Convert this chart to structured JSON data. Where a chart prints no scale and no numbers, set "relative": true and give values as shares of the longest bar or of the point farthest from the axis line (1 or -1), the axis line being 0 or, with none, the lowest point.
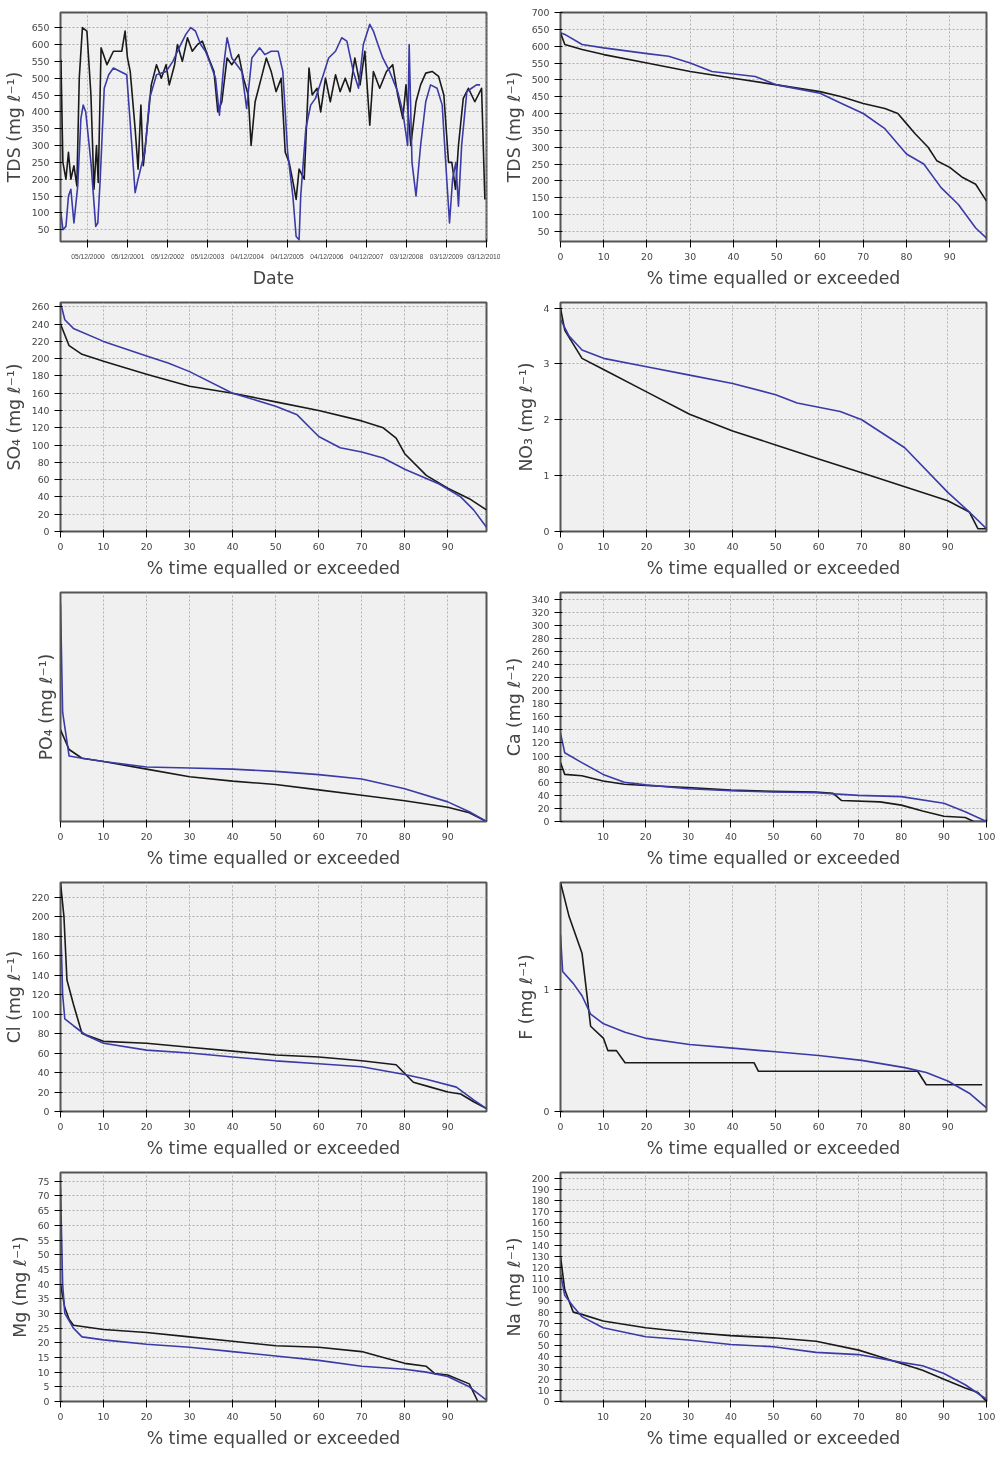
{
  "chart_data": [
    {
      "type": "line",
      "xlabel": "Date",
      "ylabel": "TDS (mg ℓ⁻¹)",
      "grid": true,
      "xlim": [
        "2000-03-28",
        "2010-12-06"
      ],
      "ylim": [
        15,
        695
      ],
      "xticks": [
        {
          "value": "2000-12-05",
          "label": "05/12/2000"
        },
        {
          "value": "2001-12-05",
          "label": "05/12/2001"
        },
        {
          "value": "2002-12-05",
          "label": "05/12/2002"
        },
        {
          "value": "2003-12-05",
          "label": "05/12/2003"
        },
        {
          "value": "2004-12-04",
          "label": "04/12/2004"
        },
        {
          "value": "2005-12-04",
          "label": "04/12/2005"
        },
        {
          "value": "2006-12-04",
          "label": "04/12/2006"
        },
        {
          "value": "2007-12-04",
          "label": "04/12/2007"
        },
        {
          "value": "2008-12-03",
          "label": "03/12/2008"
        },
        {
          "value": "2009-12-03",
          "label": "03/12/2009"
        },
        {
          "value": "2010-12-03",
          "label": "03/12/2010"
        }
      ],
      "yticks": [
        50,
        100,
        150,
        200,
        250,
        300,
        350,
        400,
        450,
        500,
        550,
        600,
        650
      ],
      "series": [
        {
          "color": "#1a1a1a",
          "x": [
            "2000-04-01",
            "2000-04-19",
            "2000-05-17",
            "2000-06-09",
            "2000-07-01",
            "2000-07-29",
            "2000-08-25",
            "2000-09-16",
            "2000-10-15",
            "2000-11-25",
            "2001-01-01",
            "2001-01-29",
            "2001-02-21",
            "2001-03-09",
            "2001-04-04",
            "2001-05-28",
            "2001-07-26",
            "2001-10-11",
            "2001-11-10",
            "2001-12-02",
            "2001-12-27",
            "2002-02-10",
            "2002-03-09",
            "2002-04-04",
            "2002-04-26",
            "2002-05-25",
            "2002-07-08",
            "2002-08-25",
            "2002-10-08",
            "2002-11-21",
            "2002-12-20",
            "2003-02-07",
            "2003-03-05",
            "2003-04-19",
            "2003-06-05",
            "2003-07-19",
            "2003-09-05",
            "2003-10-19",
            "2003-12-16",
            "2004-02-03",
            "2004-03-09",
            "2004-04-15",
            "2004-06-02",
            "2004-07-15",
            "2004-09-16",
            "2004-10-30",
            "2004-12-13",
            "2005-01-08",
            "2005-02-14",
            "2005-04-11",
            "2005-05-28",
            "2005-07-11",
            "2005-08-25",
            "2005-10-11",
            "2005-11-17",
            "2005-12-23",
            "2006-02-03",
            "2006-02-25",
            "2006-03-24",
            "2006-05-10",
            "2006-06-23",
            "2006-07-22",
            "2006-09-05",
            "2006-10-08",
            "2006-11-21",
            "2007-01-04",
            "2007-02-21",
            "2007-04-04",
            "2007-05-21",
            "2007-07-04",
            "2007-08-17",
            "2007-10-04",
            "2007-11-17",
            "2008-01-01",
            "2008-02-03",
            "2008-04-01",
            "2008-06-02",
            "2008-07-29",
            "2008-09-13",
            "2008-10-30",
            "2008-11-28",
            "2009-01-11",
            "2009-02-28",
            "2009-04-11",
            "2009-05-28",
            "2009-07-26",
            "2009-09-23",
            "2009-11-10",
            "2009-12-23",
            "2010-01-22",
            "2010-02-25",
            "2010-03-24",
            "2010-05-07",
            "2010-06-23",
            "2010-08-21",
            "2010-10-22",
            "2010-11-21"
          ],
          "values": [
            555,
            250,
            200,
            280,
            200,
            240,
            180,
            500,
            650,
            640,
            450,
            170,
            300,
            190,
            590,
            540,
            580,
            580,
            640,
            560,
            520,
            350,
            230,
            420,
            240,
            330,
            480,
            540,
            500,
            540,
            480,
            540,
            600,
            550,
            620,
            580,
            600,
            610,
            560,
            520,
            400,
            430,
            560,
            540,
            570,
            500,
            450,
            300,
            430,
            500,
            560,
            520,
            460,
            500,
            280,
            250,
            180,
            140,
            230,
            200,
            530,
            450,
            470,
            400,
            500,
            430,
            510,
            460,
            500,
            460,
            560,
            480,
            580,
            360,
            520,
            470,
            520,
            540,
            450,
            380,
            480,
            300,
            430,
            480,
            515,
            520,
            505,
            450,
            250,
            250,
            170,
            300,
            440,
            470,
            430,
            470,
            140
          ]
        },
        {
          "color": "#3b3ba8",
          "x": [
            "2000-04-01",
            "2000-04-19",
            "2000-05-17",
            "2000-06-09",
            "2000-07-01",
            "2000-07-29",
            "2000-09-02",
            "2000-10-01",
            "2000-10-22",
            "2000-11-14",
            "2001-01-01",
            "2001-02-14",
            "2001-03-05",
            "2001-03-27",
            "2001-05-03",
            "2001-06-13",
            "2001-07-26",
            "2001-09-27",
            "2001-11-25",
            "2002-01-11",
            "2002-02-10",
            "2002-03-09",
            "2002-04-08",
            "2002-05-10",
            "2002-06-23",
            "2002-08-25",
            "2002-11-21",
            "2003-01-22",
            "2003-03-20",
            "2003-05-21",
            "2003-07-04",
            "2003-08-17",
            "2003-10-04",
            "2003-11-17",
            "2004-01-04",
            "2004-02-17",
            "2004-03-24",
            "2004-05-03",
            "2004-06-02",
            "2004-07-15",
            "2004-10-15",
            "2004-11-28",
            "2005-01-15",
            "2005-03-27",
            "2005-05-14",
            "2005-07-11",
            "2005-09-13",
            "2005-10-26",
            "2005-12-09",
            "2006-01-26",
            "2006-02-25",
            "2006-03-24",
            "2006-04-08",
            "2006-05-25",
            "2006-07-08",
            "2006-08-21",
            "2006-10-22",
            "2006-12-20",
            "2007-02-21",
            "2007-04-19",
            "2007-06-05",
            "2007-08-03",
            "2007-09-20",
            "2007-11-03",
            "2008-01-01",
            "2008-02-03",
            "2008-03-16",
            "2008-04-29",
            "2008-07-01",
            "2008-09-13",
            "2008-10-30",
            "2008-12-13",
            "2008-12-27",
            "2009-01-22",
            "2009-02-28",
            "2009-04-11",
            "2009-05-28",
            "2009-07-11",
            "2009-09-09",
            "2009-10-26",
            "2009-11-25",
            "2010-01-01",
            "2010-01-29",
            "2010-02-28",
            "2010-03-24",
            "2010-04-22",
            "2010-06-09",
            "2010-07-22",
            "2010-09-05",
            "2010-10-08"
          ],
          "values": [
            100,
            50,
            60,
            150,
            170,
            70,
            180,
            380,
            420,
            400,
            250,
            60,
            70,
            200,
            470,
            510,
            530,
            520,
            510,
            300,
            160,
            200,
            240,
            280,
            440,
            510,
            520,
            550,
            590,
            630,
            650,
            640,
            600,
            580,
            540,
            500,
            390,
            540,
            620,
            560,
            520,
            410,
            560,
            590,
            570,
            580,
            580,
            520,
            280,
            150,
            30,
            20,
            150,
            350,
            420,
            440,
            500,
            560,
            580,
            620,
            610,
            520,
            470,
            600,
            660,
            640,
            600,
            560,
            520,
            460,
            400,
            300,
            600,
            250,
            150,
            300,
            430,
            480,
            470,
            420,
            260,
            70,
            200,
            250,
            120,
            300,
            460,
            470,
            480,
            480
          ]
        }
      ]
    },
    {
      "type": "line",
      "xlabel": "% time equalled or exceeded",
      "ylabel": "TDS (mg ℓ⁻¹)",
      "grid": true,
      "xlim": [
        0,
        98.5
      ],
      "ylim": [
        20,
        700
      ],
      "xticks": [
        0,
        10,
        20,
        30,
        40,
        50,
        60,
        70,
        80,
        90
      ],
      "yticks": [
        50,
        100,
        150,
        200,
        250,
        300,
        350,
        400,
        450,
        500,
        550,
        600,
        650,
        700
      ],
      "series": [
        {
          "color": "#1a1a1a",
          "x": [
            0,
            1,
            5,
            10,
            20,
            30,
            40,
            50,
            60,
            65,
            70,
            75,
            78,
            80,
            82,
            85,
            87,
            90,
            93,
            96,
            98.5
          ],
          "values": [
            640,
            605,
            590,
            575,
            550,
            525,
            505,
            485,
            465,
            450,
            430,
            415,
            400,
            370,
            340,
            300,
            260,
            240,
            210,
            190,
            140
          ]
        },
        {
          "color": "#3b3ba8",
          "x": [
            0,
            1,
            5,
            10,
            20,
            25,
            30,
            35,
            45,
            50,
            60,
            65,
            70,
            75,
            80,
            84,
            88,
            92,
            96,
            98.5
          ],
          "values": [
            640,
            635,
            605,
            595,
            578,
            570,
            550,
            525,
            510,
            485,
            460,
            430,
            400,
            355,
            280,
            250,
            180,
            130,
            60,
            30
          ]
        }
      ]
    },
    {
      "type": "line",
      "xlabel": "% time equalled or exceeded",
      "ylabel": "SO₄ (mg ℓ⁻¹)",
      "grid": true,
      "xlim": [
        0,
        99
      ],
      "ylim": [
        0,
        265
      ],
      "xticks": [
        0,
        10,
        20,
        30,
        40,
        50,
        60,
        70,
        80,
        90
      ],
      "yticks": [
        0,
        20,
        40,
        60,
        80,
        100,
        120,
        140,
        160,
        180,
        200,
        220,
        240,
        260
      ],
      "series": [
        {
          "color": "#1a1a1a",
          "x": [
            0,
            2,
            5,
            10,
            20,
            30,
            40,
            50,
            60,
            70,
            75,
            78,
            80,
            85,
            90,
            95,
            99
          ],
          "values": [
            240,
            215,
            205,
            197,
            182,
            168,
            160,
            150,
            140,
            128,
            120,
            108,
            90,
            65,
            50,
            38,
            25
          ]
        },
        {
          "color": "#3b3ba8",
          "x": [
            0,
            1,
            3,
            10,
            20,
            25,
            30,
            40,
            50,
            55,
            60,
            65,
            70,
            75,
            80,
            88,
            93,
            96,
            99
          ],
          "values": [
            265,
            245,
            235,
            220,
            203,
            195,
            185,
            160,
            145,
            135,
            110,
            97,
            92,
            85,
            72,
            55,
            40,
            25,
            5
          ]
        }
      ]
    },
    {
      "type": "line",
      "xlabel": "% time equalled or exceeded",
      "ylabel": "NO₃ (mg ℓ⁻¹)",
      "grid": true,
      "xlim": [
        0,
        99
      ],
      "ylim": [
        0,
        4.1
      ],
      "xticks": [
        0,
        10,
        20,
        30,
        40,
        50,
        60,
        70,
        80,
        90
      ],
      "yticks": [
        0,
        1,
        2,
        3,
        4
      ],
      "series": [
        {
          "color": "#1a1a1a",
          "x": [
            0,
            1,
            5,
            10,
            20,
            30,
            40,
            50,
            60,
            70,
            80,
            90,
            95,
            97,
            99
          ],
          "values": [
            4.0,
            3.6,
            3.1,
            2.9,
            2.5,
            2.1,
            1.8,
            1.55,
            1.3,
            1.05,
            0.8,
            0.55,
            0.35,
            0.05,
            0.05
          ]
        },
        {
          "color": "#3b3ba8",
          "x": [
            0,
            2,
            5,
            10,
            20,
            30,
            40,
            50,
            55,
            65,
            70,
            80,
            90,
            95,
            99
          ],
          "values": [
            3.8,
            3.5,
            3.25,
            3.1,
            2.95,
            2.8,
            2.65,
            2.45,
            2.3,
            2.15,
            2.0,
            1.5,
            0.7,
            0.35,
            0.05
          ]
        }
      ]
    },
    {
      "type": "line",
      "xlabel": "% time equalled or exceeded",
      "ylabel": "PO₄ (mg ℓ⁻¹)",
      "grid": true,
      "relative": true,
      "xlim": [
        0,
        99
      ],
      "xticks": [
        0,
        10,
        20,
        30,
        40,
        50,
        60,
        70,
        80,
        90
      ],
      "series": [
        {
          "color": "#1a1a1a",
          "x": [
            0,
            2,
            5,
            10,
            20,
            30,
            40,
            50,
            60,
            70,
            80,
            90,
            95,
            99
          ],
          "values": [
            0.42,
            0.33,
            0.29,
            0.275,
            0.24,
            0.205,
            0.185,
            0.17,
            0.145,
            0.12,
            0.095,
            0.065,
            0.04,
            0
          ]
        },
        {
          "color": "#3b3ba8",
          "x": [
            0,
            0.5,
            2,
            5,
            10,
            20,
            30,
            40,
            50,
            60,
            70,
            80,
            90,
            95,
            99
          ],
          "values": [
            1.0,
            0.5,
            0.3,
            0.29,
            0.275,
            0.25,
            0.245,
            0.24,
            0.23,
            0.215,
            0.195,
            0.15,
            0.09,
            0.045,
            0
          ]
        }
      ]
    },
    {
      "type": "line",
      "xlabel": "% time equalled or exceeded",
      "ylabel": "Ca (mg ℓ⁻¹)",
      "grid": true,
      "xlim": [
        0,
        100
      ],
      "ylim": [
        0,
        350
      ],
      "xticks": [
        10,
        20,
        30,
        40,
        50,
        60,
        70,
        80,
        90,
        100
      ],
      "yticks": [
        0,
        20,
        40,
        60,
        80,
        100,
        120,
        140,
        160,
        180,
        200,
        220,
        240,
        260,
        280,
        300,
        320,
        340
      ],
      "series": [
        {
          "color": "#1a1a1a",
          "x": [
            0,
            1,
            5,
            10,
            15,
            20,
            30,
            40,
            50,
            60,
            64,
            66,
            75,
            80,
            85,
            90,
            95,
            97,
            100
          ],
          "values": [
            90,
            72,
            70,
            62,
            57,
            55,
            52,
            48,
            46,
            45,
            43,
            32,
            30,
            25,
            16,
            8,
            6,
            0,
            0
          ]
        },
        {
          "color": "#3b3ba8",
          "x": [
            0,
            1,
            5,
            10,
            15,
            20,
            30,
            40,
            50,
            60,
            70,
            80,
            90,
            95,
            100
          ],
          "values": [
            135,
            105,
            90,
            72,
            60,
            56,
            50,
            47,
            45,
            44,
            40,
            38,
            28,
            15,
            0
          ]
        }
      ]
    },
    {
      "type": "line",
      "xlabel": "% time equalled or exceeded",
      "ylabel": "Cl (mg ℓ⁻¹)",
      "grid": true,
      "xlim": [
        0,
        99
      ],
      "ylim": [
        0,
        235
      ],
      "xticks": [
        0,
        10,
        20,
        30,
        40,
        50,
        60,
        70,
        80,
        90
      ],
      "yticks": [
        0,
        20,
        40,
        60,
        80,
        100,
        120,
        140,
        160,
        180,
        200,
        220
      ],
      "series": [
        {
          "color": "#1a1a1a",
          "x": [
            0,
            0.8,
            1.5,
            3,
            5,
            10,
            20,
            30,
            40,
            50,
            60,
            70,
            78,
            82,
            86,
            90,
            93,
            96,
            99
          ],
          "values": [
            235,
            200,
            135,
            110,
            80,
            72,
            70,
            66,
            62,
            58,
            56,
            52,
            48,
            30,
            25,
            20,
            18,
            10,
            3
          ]
        },
        {
          "color": "#3b3ba8",
          "x": [
            0,
            0.5,
            1,
            3,
            6,
            10,
            20,
            30,
            40,
            50,
            60,
            70,
            80,
            85,
            92,
            96,
            99
          ],
          "values": [
            200,
            120,
            95,
            88,
            78,
            70,
            63,
            60,
            56,
            52,
            49,
            46,
            38,
            33,
            25,
            12,
            3
          ]
        }
      ]
    },
    {
      "type": "line",
      "xlabel": "% time equalled or exceeded",
      "ylabel": "F (mg ℓ⁻¹)",
      "grid": true,
      "xlim": [
        0,
        99
      ],
      "ylim": [
        0,
        1.88
      ],
      "xticks": [
        0,
        10,
        20,
        30,
        40,
        50,
        60,
        70,
        80,
        90
      ],
      "yticks": [
        0,
        1
      ],
      "series": [
        {
          "color": "#1a1a1a",
          "x": [
            0,
            2,
            5,
            7,
            10,
            11,
            13,
            15,
            45,
            46,
            83,
            85,
            98
          ],
          "values": [
            1.88,
            1.6,
            1.3,
            0.7,
            0.6,
            0.5,
            0.5,
            0.4,
            0.4,
            0.33,
            0.33,
            0.22,
            0.22
          ]
        },
        {
          "color": "#3b3ba8",
          "x": [
            0,
            0.5,
            3,
            5,
            7,
            10,
            15,
            20,
            30,
            40,
            50,
            60,
            70,
            80,
            85,
            90,
            95,
            99
          ],
          "values": [
            1.45,
            1.15,
            1.05,
            0.95,
            0.8,
            0.72,
            0.65,
            0.6,
            0.55,
            0.52,
            0.49,
            0.46,
            0.42,
            0.36,
            0.32,
            0.25,
            0.15,
            0.03
          ]
        }
      ]
    },
    {
      "type": "line",
      "xlabel": "% time equalled or exceeded",
      "ylabel": "Mg (mg ℓ⁻¹)",
      "grid": true,
      "xlim": [
        0,
        99
      ],
      "ylim": [
        0,
        78
      ],
      "xticks": [
        0,
        10,
        20,
        30,
        40,
        50,
        60,
        70,
        80,
        90
      ],
      "yticks": [
        0,
        5,
        10,
        15,
        20,
        25,
        30,
        35,
        40,
        45,
        50,
        55,
        60,
        65,
        70,
        75
      ],
      "series": [
        {
          "color": "#1a1a1a",
          "x": [
            0,
            1,
            2,
            3,
            10,
            20,
            30,
            40,
            50,
            60,
            70,
            75,
            80,
            85,
            87,
            90,
            95,
            97
          ],
          "values": [
            40,
            32,
            28,
            26,
            24.5,
            23.5,
            22,
            20.5,
            19,
            18.5,
            17,
            15,
            13,
            12,
            9.5,
            9,
            6,
            0
          ]
        },
        {
          "color": "#3b3ba8",
          "x": [
            0,
            0.5,
            1,
            3,
            5,
            10,
            20,
            30,
            40,
            50,
            60,
            70,
            80,
            85,
            90,
            95,
            99
          ],
          "values": [
            73,
            40,
            30,
            25,
            22,
            21,
            19.5,
            18.5,
            17,
            15.5,
            14,
            12,
            11,
            10,
            8.5,
            5,
            0.5
          ]
        }
      ]
    },
    {
      "type": "line",
      "xlabel": "% time equalled or exceeded",
      "ylabel": "Na (mg ℓ⁻¹)",
      "grid": true,
      "xlim": [
        0,
        100
      ],
      "ylim": [
        0,
        205
      ],
      "xticks": [
        10,
        20,
        30,
        40,
        50,
        60,
        70,
        80,
        90,
        100
      ],
      "yticks": [
        0,
        10,
        20,
        30,
        40,
        50,
        60,
        70,
        80,
        90,
        100,
        110,
        120,
        130,
        140,
        150,
        160,
        170,
        180,
        190,
        200
      ],
      "series": [
        {
          "color": "#1a1a1a",
          "x": [
            0,
            1,
            3,
            5,
            10,
            20,
            30,
            40,
            50,
            60,
            70,
            75,
            80,
            85,
            90,
            95,
            98,
            100
          ],
          "values": [
            130,
            100,
            80,
            78,
            72,
            66,
            62,
            59,
            57,
            54,
            46,
            40,
            34,
            28,
            20,
            12,
            8,
            0
          ]
        },
        {
          "color": "#3b3ba8",
          "x": [
            0,
            1,
            3,
            5,
            10,
            20,
            30,
            40,
            50,
            60,
            70,
            80,
            85,
            90,
            95,
            100
          ],
          "values": [
            115,
            95,
            85,
            76,
            66,
            58,
            55,
            51,
            49,
            44,
            42,
            35,
            32,
            25,
            15,
            2
          ]
        }
      ]
    }
  ]
}
